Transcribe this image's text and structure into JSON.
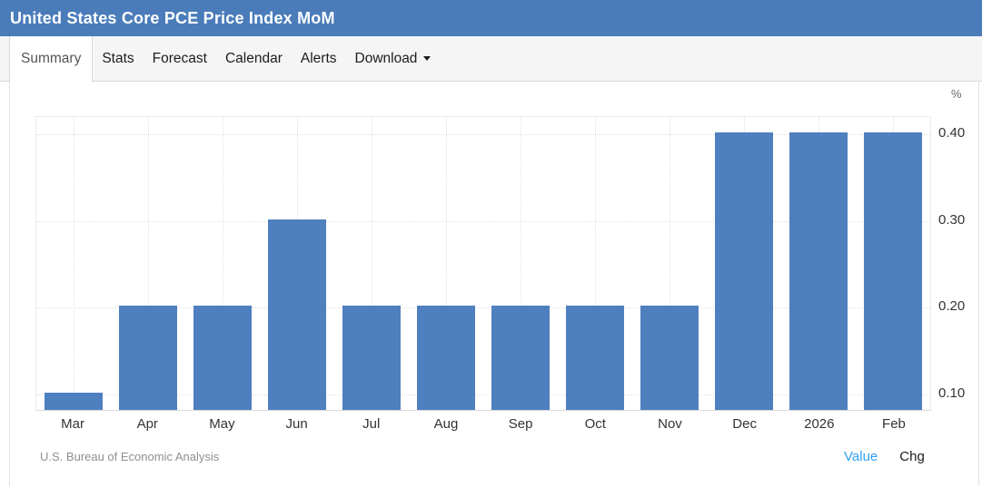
{
  "header": {
    "title": "United States Core PCE Price Index MoM"
  },
  "tabs": [
    {
      "label": "Summary",
      "active": true,
      "caret": false
    },
    {
      "label": "Stats",
      "active": false,
      "caret": false
    },
    {
      "label": "Forecast",
      "active": false,
      "caret": false
    },
    {
      "label": "Calendar",
      "active": false,
      "caret": false
    },
    {
      "label": "Alerts",
      "active": false,
      "caret": false
    },
    {
      "label": "Download",
      "active": false,
      "caret": true
    }
  ],
  "chart_data": {
    "type": "bar",
    "title": "United States Core PCE Price Index MoM",
    "unit_label": "%",
    "categories": [
      "Mar",
      "Apr",
      "May",
      "Jun",
      "Jul",
      "Aug",
      "Sep",
      "Oct",
      "Nov",
      "Dec",
      "2026",
      "Feb"
    ],
    "values": [
      0.1,
      0.2,
      0.2,
      0.3,
      0.2,
      0.2,
      0.2,
      0.2,
      0.2,
      0.4,
      0.4,
      0.4
    ],
    "ylim": [
      0.08,
      0.42
    ],
    "yticks": [
      0.1,
      0.2,
      0.3,
      0.4
    ],
    "ytick_labels": [
      "0.10",
      "0.20",
      "0.30",
      "0.40"
    ],
    "grid": "dotted",
    "legend_position": "none",
    "bar_color": "#4E7FBF"
  },
  "footer": {
    "source": "U.S. Bureau of Economic Analysis",
    "links": [
      {
        "label": "Value",
        "active": true
      },
      {
        "label": "Chg",
        "active": false
      }
    ]
  }
}
